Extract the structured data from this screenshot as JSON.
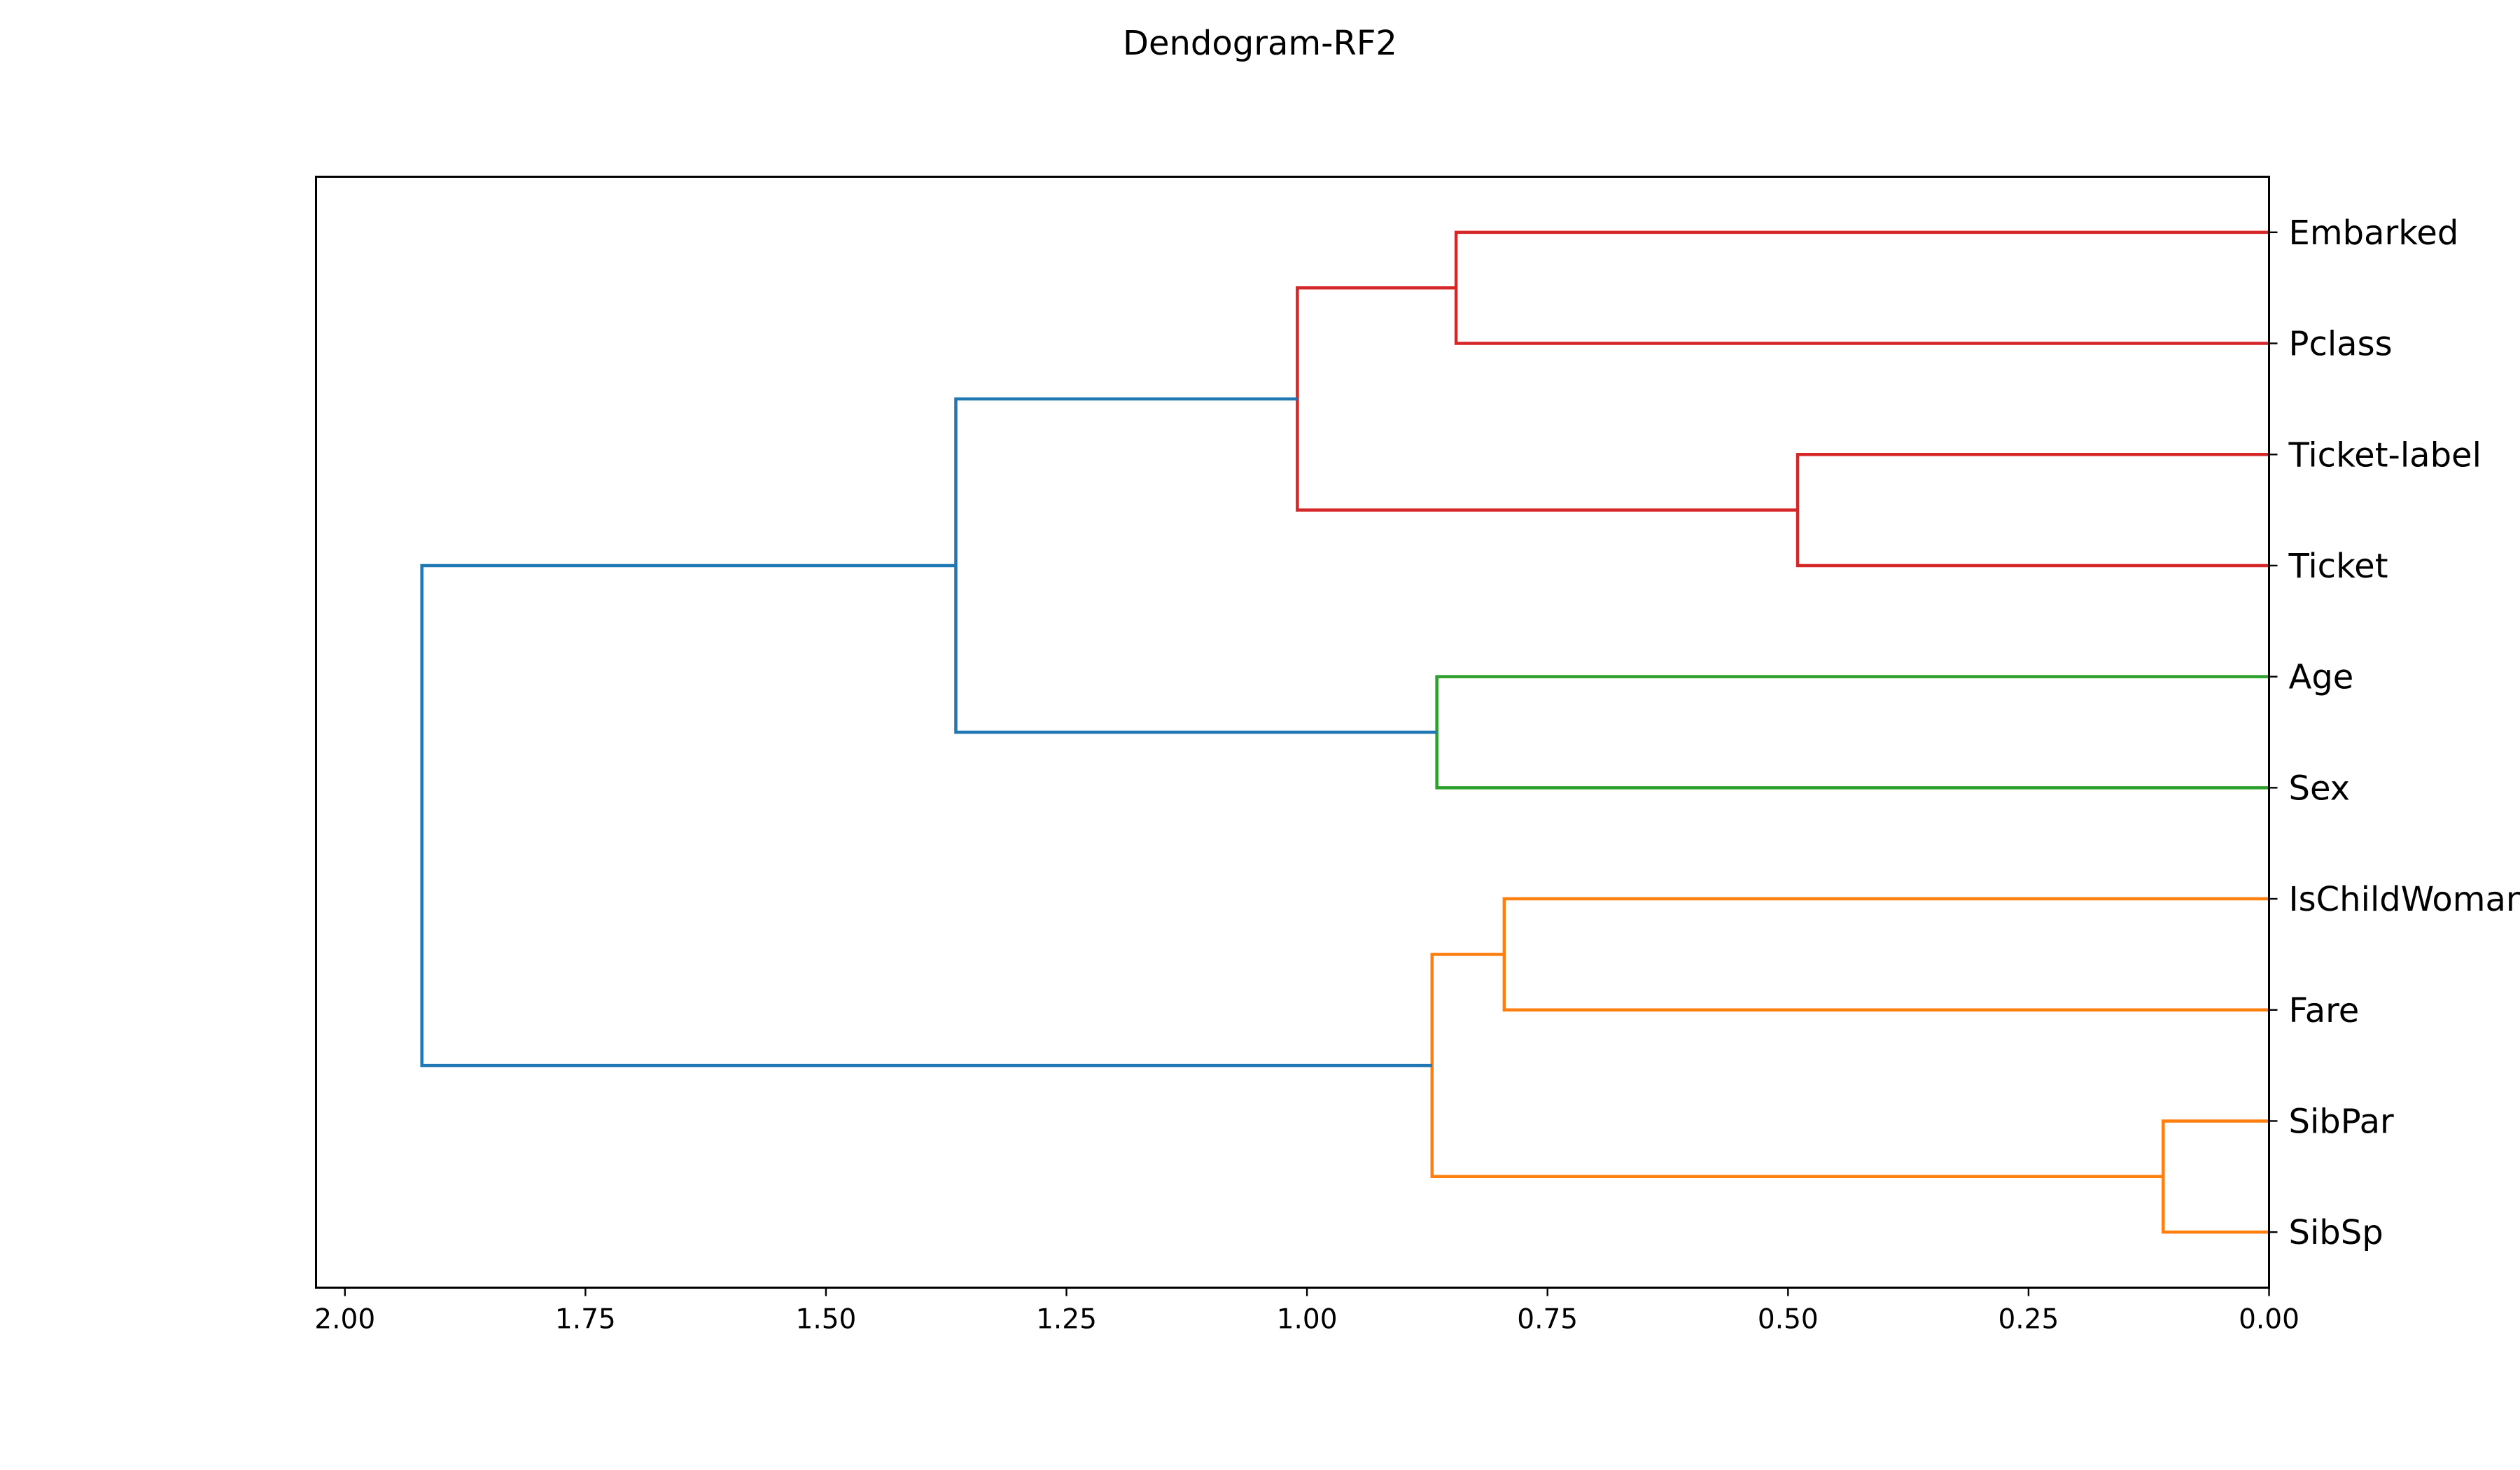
{
  "chart_data": {
    "type": "dendrogram",
    "title": "Dendogram-RF2",
    "orientation": "left",
    "xlim": [
      2.03,
      0.0
    ],
    "x_ticks": [
      2.0,
      1.75,
      1.5,
      1.25,
      1.0,
      0.75,
      0.5,
      0.25,
      0.0
    ],
    "x_tick_labels": [
      "2.00",
      "1.75",
      "1.50",
      "1.25",
      "1.00",
      "0.75",
      "0.50",
      "0.25",
      "0.00"
    ],
    "leaves": [
      "Embarked",
      "Pclass",
      "Ticket-label",
      "Ticket",
      "Age",
      "Sex",
      "IsChildWoman",
      "Fare",
      "SibPar",
      "SibSp"
    ],
    "merges": [
      {
        "left": "Embarked",
        "right": "Pclass",
        "height": 0.845,
        "color": "#d62728",
        "id": "c1"
      },
      {
        "left": "Ticket-label",
        "right": "Ticket",
        "height": 0.49,
        "color": "#d62728",
        "id": "c2"
      },
      {
        "left": "c1",
        "right": "c2",
        "height": 1.01,
        "color": "#d62728",
        "id": "c3"
      },
      {
        "left": "Age",
        "right": "Sex",
        "height": 0.865,
        "color": "#2ca02c",
        "id": "c4"
      },
      {
        "left": "c3",
        "right": "c4",
        "height": 1.365,
        "color": "#1f77b4",
        "id": "c5"
      },
      {
        "left": "IsChildWoman",
        "right": "Fare",
        "height": 0.795,
        "color": "#ff7f0e",
        "id": "c6"
      },
      {
        "left": "SibPar",
        "right": "SibSp",
        "height": 0.11,
        "color": "#ff7f0e",
        "id": "c7"
      },
      {
        "left": "c6",
        "right": "c7",
        "height": 0.87,
        "color": "#ff7f0e",
        "id": "c8"
      },
      {
        "left": "c5",
        "right": "c8",
        "height": 1.92,
        "color": "#1f77b4",
        "id": "c9"
      }
    ],
    "grid": false,
    "legend": "none"
  }
}
